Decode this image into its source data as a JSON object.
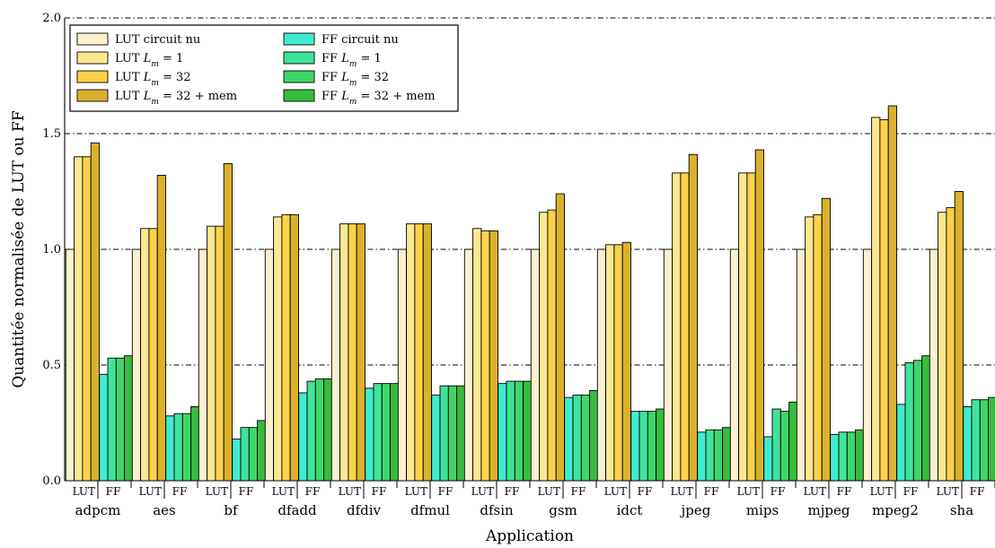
{
  "chart_data": {
    "type": "bar",
    "xlabel": "Application",
    "ylabel": "Quantitée normalisée de LUT ou FF",
    "ylim": [
      0.0,
      2.0
    ],
    "yticks": [
      "0.0",
      "0.5",
      "1.0",
      "1.5",
      "2.0"
    ],
    "grid": "horizontal dash-dot",
    "legend_position": "top-left",
    "group_labels": [
      "LUT",
      "FF"
    ],
    "categories": [
      "adpcm",
      "aes",
      "bf",
      "dfadd",
      "dfdiv",
      "dfmul",
      "dfsin",
      "gsm",
      "idct",
      "jpeg",
      "mips",
      "mjpeg",
      "mpeg2",
      "sha"
    ],
    "series": [
      {
        "name": "LUT circuit nu",
        "group": "LUT",
        "color": "#fdf0d0",
        "values": [
          1.0,
          1.0,
          1.0,
          1.0,
          1.0,
          1.0,
          1.0,
          1.0,
          1.0,
          1.0,
          1.0,
          1.0,
          1.0,
          1.0
        ]
      },
      {
        "name": "LUT L_m = 1",
        "group": "LUT",
        "color": "#fde890",
        "values": [
          1.4,
          1.09,
          1.1,
          1.14,
          1.11,
          1.11,
          1.09,
          1.16,
          1.02,
          1.33,
          1.33,
          1.14,
          1.57,
          1.16
        ]
      },
      {
        "name": "LUT L_m = 32",
        "group": "LUT",
        "color": "#fdd24a",
        "values": [
          1.4,
          1.09,
          1.1,
          1.15,
          1.11,
          1.11,
          1.08,
          1.17,
          1.02,
          1.33,
          1.33,
          1.15,
          1.56,
          1.18
        ]
      },
      {
        "name": "LUT L_m = 32 + mem",
        "group": "LUT",
        "color": "#d9b12c",
        "values": [
          1.46,
          1.32,
          1.37,
          1.15,
          1.11,
          1.11,
          1.08,
          1.24,
          1.03,
          1.41,
          1.43,
          1.22,
          1.62,
          1.25
        ]
      },
      {
        "name": "FF circuit nu",
        "group": "FF",
        "color": "#40ecd0",
        "values": [
          0.46,
          0.28,
          0.18,
          0.38,
          0.4,
          0.37,
          0.42,
          0.36,
          0.3,
          0.21,
          0.19,
          0.2,
          0.33,
          0.32
        ]
      },
      {
        "name": "FF L_m = 1",
        "group": "FF",
        "color": "#40e39a",
        "values": [
          0.53,
          0.29,
          0.23,
          0.43,
          0.42,
          0.41,
          0.43,
          0.37,
          0.3,
          0.22,
          0.31,
          0.21,
          0.51,
          0.35
        ]
      },
      {
        "name": "FF L_m = 32",
        "group": "FF",
        "color": "#3ed669",
        "values": [
          0.53,
          0.29,
          0.23,
          0.44,
          0.42,
          0.41,
          0.43,
          0.37,
          0.3,
          0.22,
          0.3,
          0.21,
          0.52,
          0.35
        ]
      },
      {
        "name": "FF L_m = 32 + mem",
        "group": "FF",
        "color": "#36bc3e",
        "values": [
          0.54,
          0.32,
          0.26,
          0.44,
          0.42,
          0.41,
          0.43,
          0.39,
          0.31,
          0.23,
          0.34,
          0.22,
          0.54,
          0.36
        ]
      }
    ]
  }
}
